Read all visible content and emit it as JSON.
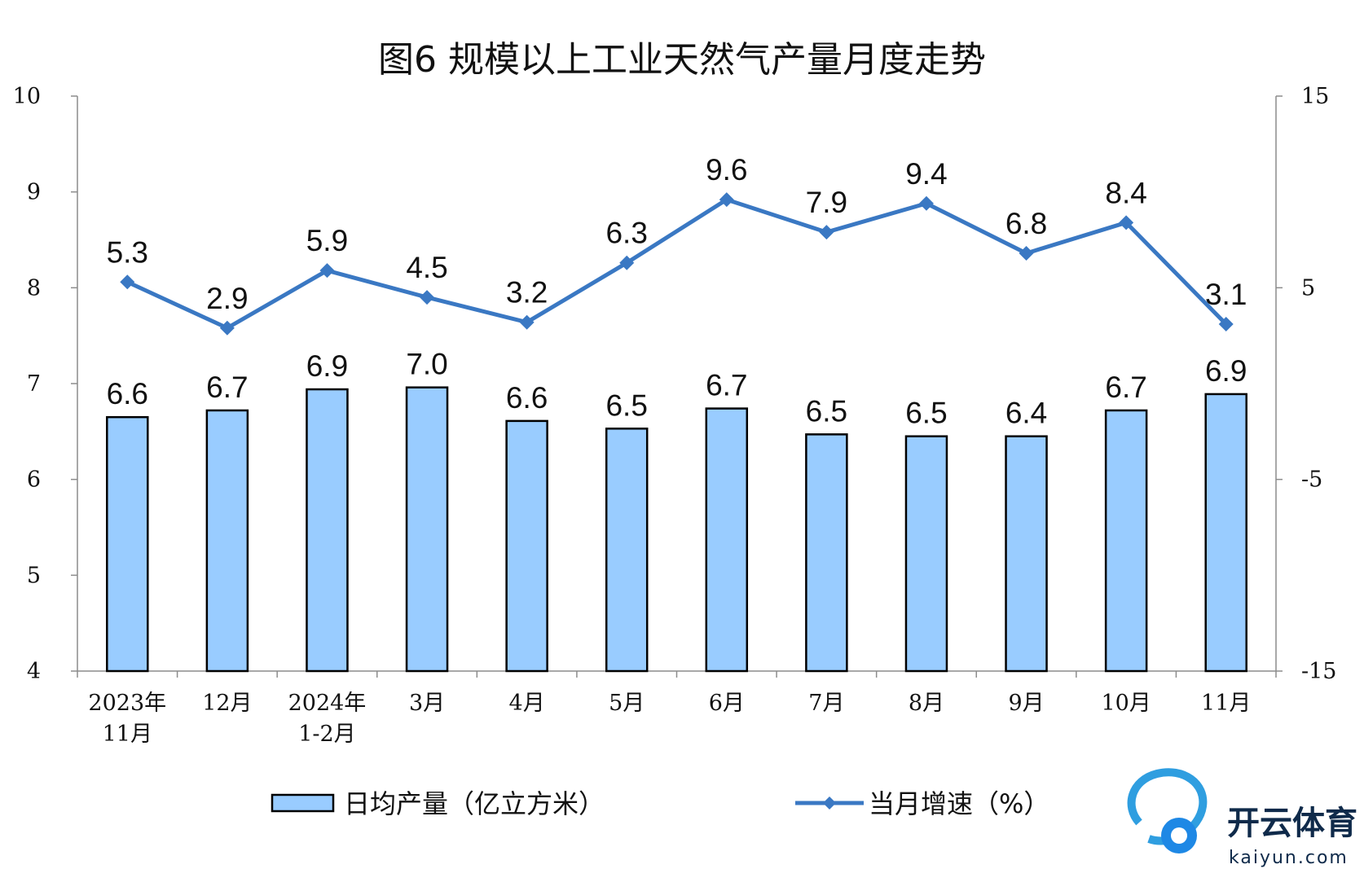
{
  "chart_data": {
    "type": "bar",
    "title": "图6  规模以上工业天然气产量月度走势",
    "categories": [
      [
        "2023年",
        "11月"
      ],
      [
        "12月"
      ],
      [
        "2024年",
        "1-2月"
      ],
      [
        "3月"
      ],
      [
        "4月"
      ],
      [
        "5月"
      ],
      [
        "6月"
      ],
      [
        "7月"
      ],
      [
        "8月"
      ],
      [
        "9月"
      ],
      [
        "10月"
      ],
      [
        "11月"
      ]
    ],
    "left_axis": {
      "ticks": [
        "4",
        "5",
        "6",
        "7",
        "8",
        "9",
        "10"
      ],
      "ylim": [
        4,
        10
      ]
    },
    "right_axis": {
      "ticks": [
        "-15",
        "-5",
        "5",
        "15"
      ],
      "ylim": [
        -15,
        15
      ]
    },
    "series": [
      {
        "name": "日均产量（亿立方米）",
        "type": "bar",
        "axis": "left",
        "color": "#99ccff",
        "values": [
          6.65,
          6.72,
          6.94,
          6.96,
          6.61,
          6.53,
          6.74,
          6.47,
          6.45,
          6.45,
          6.72,
          6.89
        ],
        "labels": [
          "6.6",
          "6.7",
          "6.9",
          "7.0",
          "6.6",
          "6.5",
          "6.7",
          "6.5",
          "6.5",
          "6.4",
          "6.7",
          "6.9"
        ]
      },
      {
        "name": "当月增速（%）",
        "type": "line",
        "axis": "right",
        "color": "#3a78c3",
        "values": [
          5.3,
          2.9,
          5.9,
          4.5,
          3.2,
          6.3,
          9.6,
          7.9,
          9.4,
          6.8,
          8.4,
          3.1
        ],
        "labels": [
          "5.3",
          "2.9",
          "5.9",
          "4.5",
          "3.2",
          "6.3",
          "9.6",
          "7.9",
          "9.4",
          "6.8",
          "8.4",
          "3.1"
        ]
      }
    ],
    "legend": {
      "position": "bottom"
    },
    "grid": false
  },
  "watermark": {
    "brand": "开云体育",
    "site": "kaiyun.com"
  }
}
